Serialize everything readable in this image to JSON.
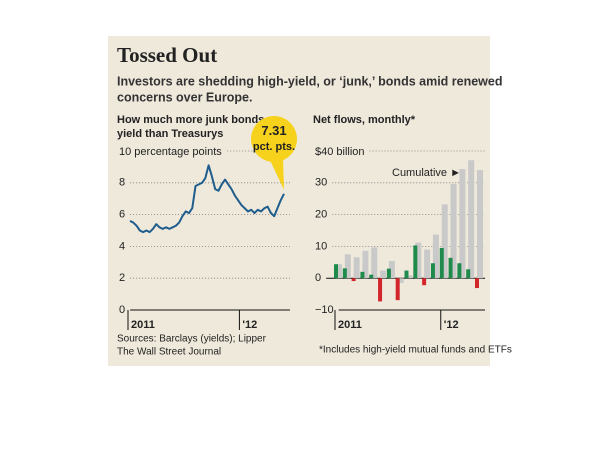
{
  "title": "Tossed Out",
  "subtitle": [
    "Investors are shedding high-yield, or ‘junk,’ bonds amid renewed",
    "concerns over Europe."
  ],
  "source": [
    "Sources: Barclays (yields); Lipper",
    "The Wall Street Journal"
  ],
  "chart_data": [
    {
      "type": "line",
      "title": [
        "How much more junk bonds",
        "yield than Treasurys"
      ],
      "categories": [
        "2011",
        null,
        null,
        null,
        null,
        null,
        null,
        null,
        null,
        null,
        null,
        null,
        null,
        null,
        null,
        null,
        null,
        null,
        null,
        null,
        null,
        null,
        null,
        null,
        null,
        null,
        null,
        null,
        null,
        null,
        null,
        null,
        null,
        null,
        "'12",
        null,
        null,
        null,
        null,
        null,
        null,
        null,
        null,
        null,
        null,
        null,
        null,
        null
      ],
      "values": [
        5.6,
        5.5,
        5.3,
        5.0,
        4.9,
        5.0,
        4.9,
        5.1,
        5.4,
        5.2,
        5.1,
        5.2,
        5.1,
        5.2,
        5.3,
        5.5,
        5.9,
        6.2,
        6.1,
        6.4,
        7.8,
        7.9,
        8.0,
        8.3,
        9.1,
        8.4,
        7.6,
        7.5,
        7.9,
        8.2,
        7.9,
        7.6,
        7.2,
        6.9,
        6.6,
        6.4,
        6.2,
        6.3,
        6.1,
        6.3,
        6.2,
        6.4,
        6.5,
        6.1,
        5.9,
        6.4,
        6.9,
        7.31
      ],
      "value_labels": [
        null,
        null,
        null,
        null,
        null,
        null,
        null,
        null,
        null,
        null,
        null,
        null,
        null,
        null,
        null,
        null,
        null,
        null,
        null,
        null,
        null,
        null,
        null,
        null,
        null,
        null,
        null,
        null,
        null,
        null,
        null,
        null,
        null,
        null,
        null,
        null,
        null,
        null,
        null,
        null,
        null,
        null,
        null,
        null,
        null,
        null,
        null,
        "7.31 pct. pts."
      ],
      "color": "#1f5d8c",
      "callout_color": "#f7d21c",
      "ylim": [
        0,
        10
      ],
      "yticks": [
        0,
        2,
        4,
        6,
        8,
        {
          "value": 10,
          "label": "10 percentage points"
        }
      ],
      "grid": true
    },
    {
      "type": "bar",
      "title": [
        "Net flows, monthly*"
      ],
      "categories": [
        "2011",
        null,
        null,
        null,
        null,
        null,
        null,
        null,
        null,
        null,
        null,
        null,
        "'12",
        null,
        null,
        null,
        null
      ],
      "series": [
        {
          "values": [
            4.4,
            3.1,
            -0.9,
            2.0,
            1.1,
            -7.3,
            3.0,
            -6.9,
            2.4,
            10.3,
            -2.2,
            4.7,
            9.5,
            6.4,
            4.7,
            2.8,
            -3.1
          ],
          "color": "#1e8a4c",
          "negative_color": "#d2262b"
        },
        {
          "name": "Cumulative ►",
          "values": [
            4.4,
            7.5,
            6.6,
            8.6,
            9.7,
            2.4,
            5.4,
            -1.5,
            0.9,
            11.2,
            9.0,
            13.7,
            23.2,
            29.6,
            34.3,
            37.1,
            34.0
          ],
          "color": "#c9c9c9",
          "negative_color": "#c9c9c9"
        }
      ],
      "ylim": [
        -10,
        40
      ],
      "yticks": [
        {
          "value": -10,
          "label": "−10"
        },
        0,
        10,
        20,
        30,
        {
          "value": 40,
          "label": "$40 billion"
        }
      ],
      "grid": true,
      "note": "*Includes high-yield mutual funds and ETFs"
    }
  ]
}
